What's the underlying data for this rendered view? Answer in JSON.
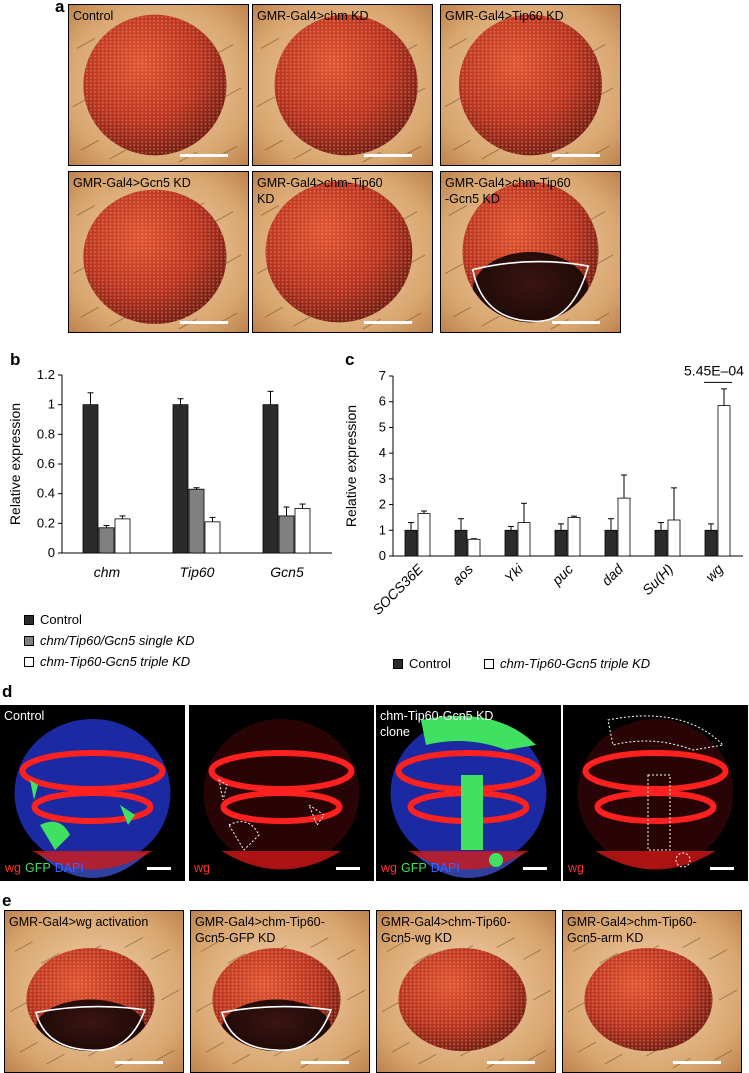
{
  "panel_a": {
    "letter": "a",
    "photos": [
      {
        "label": "Control",
        "boundary": false
      },
      {
        "label": "GMR-Gal4>chm KD",
        "boundary": false
      },
      {
        "label": "GMR-Gal4>Tip60 KD",
        "boundary": false
      },
      {
        "label": "GMR-Gal4>Gcn5 KD",
        "boundary": false
      },
      {
        "label": "GMR-Gal4>chm-Tip60\nKD",
        "boundary": false
      },
      {
        "label": "GMR-Gal4>chm-Tip60\n-Gcn5 KD",
        "boundary": true
      }
    ]
  },
  "panel_b": {
    "letter": "b",
    "legend": [
      "Control",
      "chm/Tip60/Gcn5 single KD",
      "chm-Tip60-Gcn5 triple KD"
    ]
  },
  "panel_c": {
    "letter": "c",
    "legend": [
      "Control",
      "chm-Tip60-Gcn5 triple KD"
    ],
    "pvalue": "5.45E–04"
  },
  "panel_d": {
    "letter": "d",
    "images": [
      {
        "label": "Control",
        "bottom": [
          "wg",
          "GFP",
          "DAPI"
        ]
      },
      {
        "label": "",
        "bottom": [
          "wg"
        ]
      },
      {
        "label": "chm-Tip60-Gcn5 KD\nclone",
        "bottom": [
          "wg",
          "GFP",
          "DAPI"
        ]
      },
      {
        "label": "",
        "bottom": [
          "wg"
        ]
      }
    ]
  },
  "panel_e": {
    "letter": "e",
    "photos": [
      {
        "label": "GMR-Gal4>wg activation",
        "boundary": true
      },
      {
        "label": "GMR-Gal4>chm-Tip60-\nGcn5-GFP KD",
        "boundary": true
      },
      {
        "label": "GMR-Gal4>chm-Tip60-\nGcn5-wg KD",
        "boundary": false
      },
      {
        "label": "GMR-Gal4>chm-Tip60-\nGcn5-arm KD",
        "boundary": false
      }
    ]
  },
  "colors": {
    "control_bar": "#2b2b2b",
    "single_kd_bar": "#808080",
    "triple_kd_bar": "#ffffff",
    "eye_red": "#b8321f",
    "wg_red": "#ff2020",
    "gfp_green": "#40e060",
    "dapi_blue": "#2030c0"
  },
  "chart_data": [
    {
      "type": "bar",
      "ylabel": "Relative expression",
      "xlabel": "",
      "ylim": [
        0,
        1.2
      ],
      "yticks": [
        "0",
        "0.2",
        "0.4",
        "0.6",
        "0.8",
        "1",
        "1.2"
      ],
      "categories": [
        "chm",
        "Tip60",
        "Gcn5"
      ],
      "series": [
        {
          "name": "Control",
          "values": [
            1.0,
            1.0,
            1.0
          ],
          "errors": [
            0.08,
            0.04,
            0.09
          ]
        },
        {
          "name": "chm/Tip60/Gcn5 single KD",
          "values": [
            0.17,
            0.43,
            0.25
          ],
          "errors": [
            0.015,
            0.01,
            0.06
          ]
        },
        {
          "name": "chm-Tip60-Gcn5 triple KD",
          "values": [
            0.23,
            0.21,
            0.3
          ],
          "errors": [
            0.02,
            0.03,
            0.03
          ]
        }
      ],
      "legend_position": "bottom"
    },
    {
      "type": "bar",
      "ylabel": "Relative expression",
      "xlabel": "",
      "ylim": [
        0,
        7
      ],
      "yticks": [
        "0",
        "1",
        "2",
        "3",
        "4",
        "5",
        "6",
        "7"
      ],
      "categories": [
        "SOCS36E",
        "aos",
        "Yki",
        "puc",
        "dad",
        "Su(H)",
        "wg"
      ],
      "series": [
        {
          "name": "Control",
          "values": [
            1.0,
            1.0,
            1.0,
            1.0,
            1.0,
            1.0,
            1.0
          ],
          "errors": [
            0.3,
            0.45,
            0.15,
            0.25,
            0.45,
            0.3,
            0.25
          ]
        },
        {
          "name": "chm-Tip60-Gcn5 triple KD",
          "values": [
            1.65,
            0.65,
            1.3,
            1.5,
            2.25,
            1.4,
            5.85
          ],
          "errors": [
            0.1,
            0.02,
            0.75,
            0.05,
            0.9,
            1.25,
            0.65
          ]
        }
      ],
      "annotation": {
        "text": "5.45E–04",
        "category": "wg"
      },
      "legend_position": "bottom"
    }
  ]
}
